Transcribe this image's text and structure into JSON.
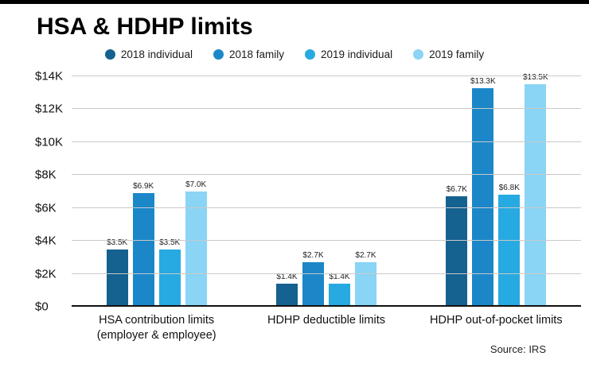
{
  "title": "HSA & HDHP limits",
  "source": "Source: IRS",
  "chart_data": {
    "type": "bar",
    "title": "HSA & HDHP limits",
    "categories": [
      "HSA contribution limits (employer & employee)",
      "HDHP deductible limits",
      "HDHP out-of-pocket limits"
    ],
    "series": [
      {
        "name": "2018 individual",
        "color": "#15618f",
        "values": [
          3500,
          1400,
          6700
        ],
        "labels": [
          "$3.5K",
          "$1.4K",
          "$6.7K"
        ]
      },
      {
        "name": "2018 family",
        "color": "#1b87c9",
        "values": [
          6900,
          2700,
          13300
        ],
        "labels": [
          "$6.9K",
          "$2.7K",
          "$13.3K"
        ]
      },
      {
        "name": "2019 individual",
        "color": "#27aae1",
        "values": [
          3500,
          1400,
          6800
        ],
        "labels": [
          "$3.5K",
          "$1.4K",
          "$6.8K"
        ]
      },
      {
        "name": "2019 family",
        "color": "#8ad4f5",
        "values": [
          7000,
          2700,
          13500
        ],
        "labels": [
          "$7.0K",
          "$2.7K",
          "$13.5K"
        ]
      }
    ],
    "ylim": [
      0,
      14000
    ],
    "ytick_step": 2000,
    "ytick_labels": [
      "$0",
      "$2K",
      "$4K",
      "$6K",
      "$8K",
      "$10K",
      "$12K",
      "$14K"
    ],
    "grid": true,
    "legend_position": "top"
  }
}
